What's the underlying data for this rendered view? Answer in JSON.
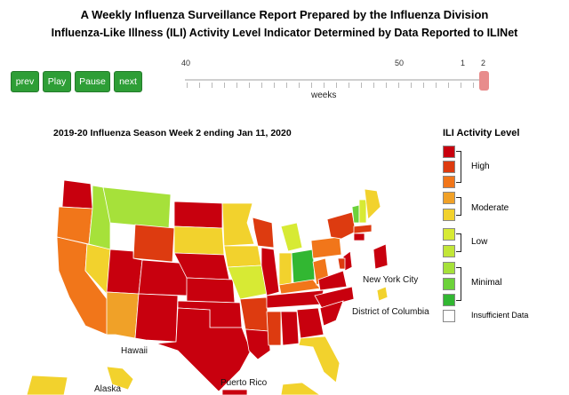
{
  "header": {
    "title": "A Weekly Influenza Surveillance Report Prepared by the Influenza Division",
    "subtitle": "Influenza-Like Illness (ILI) Activity Level Indicator Determined by Data Reported to ILINet"
  },
  "controls": {
    "prev": "prev",
    "play": "Play",
    "pause": "Pause",
    "next": "next"
  },
  "slider": {
    "ticks": [
      "40",
      "50",
      "1",
      "2"
    ],
    "label": "weeks",
    "current_week": "2"
  },
  "map": {
    "title": "2019-20 Influenza Season Week 2 ending Jan 11, 2020",
    "labels": {
      "new_york_city": "New York City",
      "dc": "District of Columbia",
      "hawaii": "Hawaii",
      "alaska": "Alaska",
      "puerto_rico": "Puerto Rico"
    }
  },
  "legend": {
    "title": "ILI Activity Level",
    "groups": [
      "High",
      "Moderate",
      "Low",
      "Minimal",
      "Insufficient Data"
    ],
    "colors": [
      "#c8000e",
      "#dd3b10",
      "#f1761a",
      "#f0a128",
      "#f2d22d",
      "#d7ea34",
      "#a6e13a",
      "#6cd23a",
      "#32b732",
      "#ffffff"
    ]
  }
}
